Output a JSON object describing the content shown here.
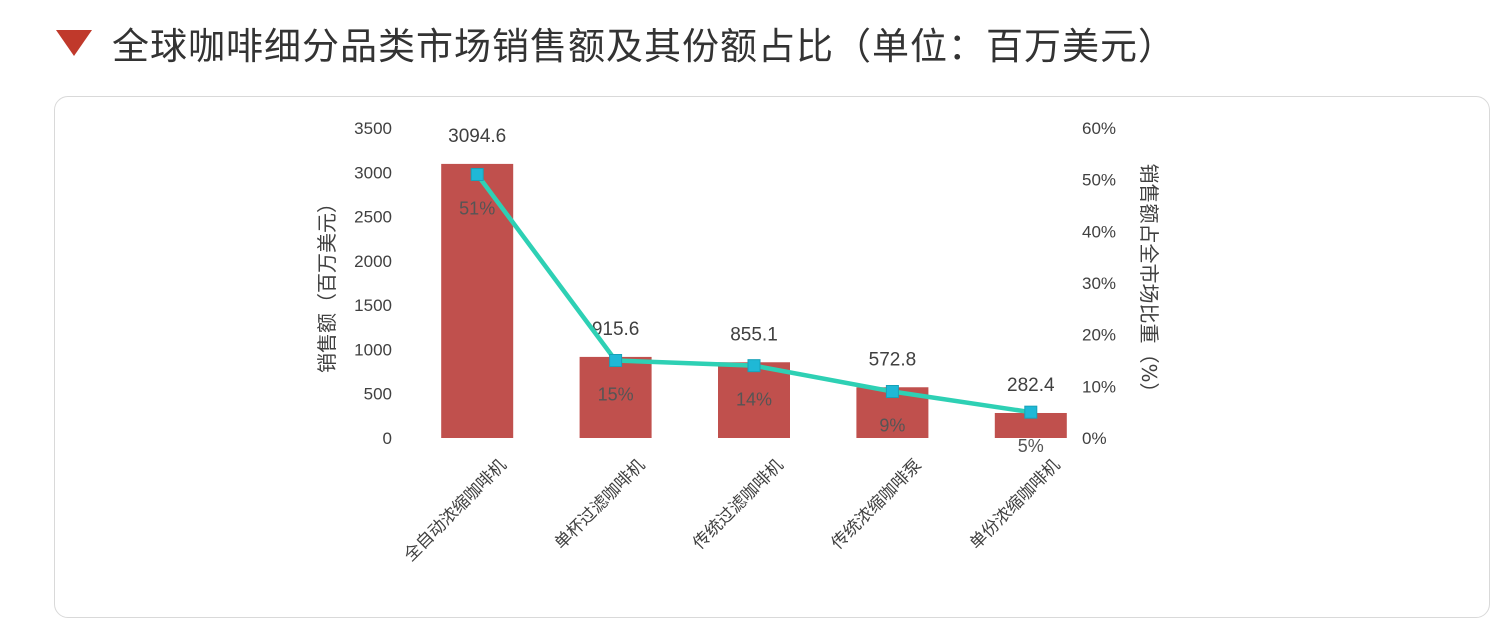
{
  "header": {
    "title": "全球咖啡细分品类市场销售额及其份额占比（单位：百万美元）",
    "accent_color": "#c0392b"
  },
  "chart_data": {
    "type": "bar",
    "title": "全球咖啡细分品类市场销售额及其份额占比（单位：百万美元）",
    "categories": [
      "全自动浓缩咖啡机",
      "单杯过滤咖啡机",
      "传统过滤咖啡机",
      "传统浓缩咖啡泵",
      "单份浓缩咖啡机"
    ],
    "series": [
      {
        "type": "bar",
        "axis": "left",
        "values": [
          3094.6,
          915.6,
          855.1,
          572.8,
          282.4
        ],
        "color": "#c0504d"
      },
      {
        "type": "line",
        "axis": "right",
        "values": [
          51,
          15,
          14,
          9,
          5
        ],
        "labels": [
          "51%",
          "15%",
          "14%",
          "9%",
          "5%"
        ],
        "color": "#2ed0b4",
        "marker_color": "#1fb8d6"
      }
    ],
    "ylabel": "销售额（百万美元）",
    "y2label": "销售额占全市场比重（%）",
    "ylim": [
      0,
      3500
    ],
    "y2lim": [
      0,
      60
    ],
    "yticks": [
      "0",
      "500",
      "1000",
      "1500",
      "2000",
      "2500",
      "3000",
      "3500"
    ],
    "y2ticks": [
      "0%",
      "10%",
      "20%",
      "30%",
      "40%",
      "50%",
      "60%"
    ],
    "grid": false,
    "legend": "none"
  }
}
